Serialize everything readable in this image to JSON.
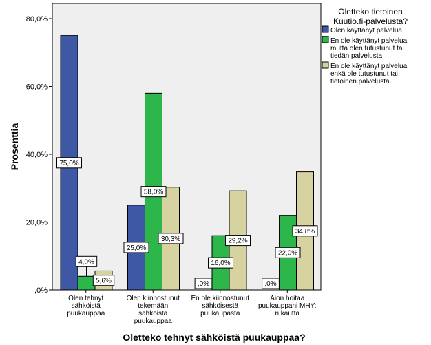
{
  "chart_data": {
    "type": "bar",
    "title": "",
    "xlabel": "Oletteko tehnyt sähköistä puukauppaa?",
    "ylabel": "Prosenttia",
    "ylim": [
      0,
      80
    ],
    "yticks": [
      0,
      20,
      40,
      60,
      80
    ],
    "ytick_labels": [
      ",0%",
      "20,0%",
      "40,0%",
      "60,0%",
      "80,0%"
    ],
    "categories": [
      "Olen tehnyt sähköistä puukauppaa",
      "Olen kiinnostunut tekemään sähköistä puukauppaa",
      "En ole kiinnostunut sähköisestä puukaupasta",
      "Aion hoitaa puukauppani MHY:n kautta"
    ],
    "category_lines": [
      [
        "Olen tehnyt",
        "sähköistä",
        "puukauppaa"
      ],
      [
        "Olen kiinnostunut",
        "tekemään",
        "sähköistä",
        "puukauppaa"
      ],
      [
        "En ole kiinnostunut",
        "sähköisestä",
        "puukaupasta"
      ],
      [
        "Aion hoitaa",
        "puukauppani MHY:",
        "n kautta"
      ]
    ],
    "legend_title_lines": [
      "Oletteko tietoinen",
      "Kuutio.fi-palvelusta?"
    ],
    "legend_position": "right",
    "grid": false,
    "plot_background": "#efefef",
    "series": [
      {
        "name": "Olen käyttänyt palvelua",
        "name_lines": [
          "Olen käyttänyt palvelua"
        ],
        "color": "#3e58a6",
        "values": [
          75.0,
          25.0,
          0.0,
          0.0
        ],
        "labels": [
          "75,0%",
          "25,0%",
          ",0%",
          ",0%"
        ]
      },
      {
        "name": "En ole käyttänyt palvelua, mutta olen tutustunut tai tiedän palvelusta",
        "name_lines": [
          "En ole käyttänyt palvelua,",
          "mutta olen tutustunut tai",
          "tiedän palvelusta"
        ],
        "color": "#2db74a",
        "values": [
          4.0,
          58.0,
          16.0,
          22.0
        ],
        "labels": [
          "4,0%",
          "58,0%",
          "16,0%",
          "22,0%"
        ]
      },
      {
        "name": "En ole käyttänyt palvelua, enkä ole tutustunut tai tietoinen palvelusta",
        "name_lines": [
          "En ole käyttänyt palvelua,",
          "enkä ole tutustunut tai",
          "tietoinen palvelusta"
        ],
        "color": "#d7d3a0",
        "values": [
          5.6,
          30.3,
          29.2,
          34.8
        ],
        "labels": [
          "5,6%",
          "30,3%",
          "29,2%",
          "34,8%"
        ]
      }
    ]
  }
}
